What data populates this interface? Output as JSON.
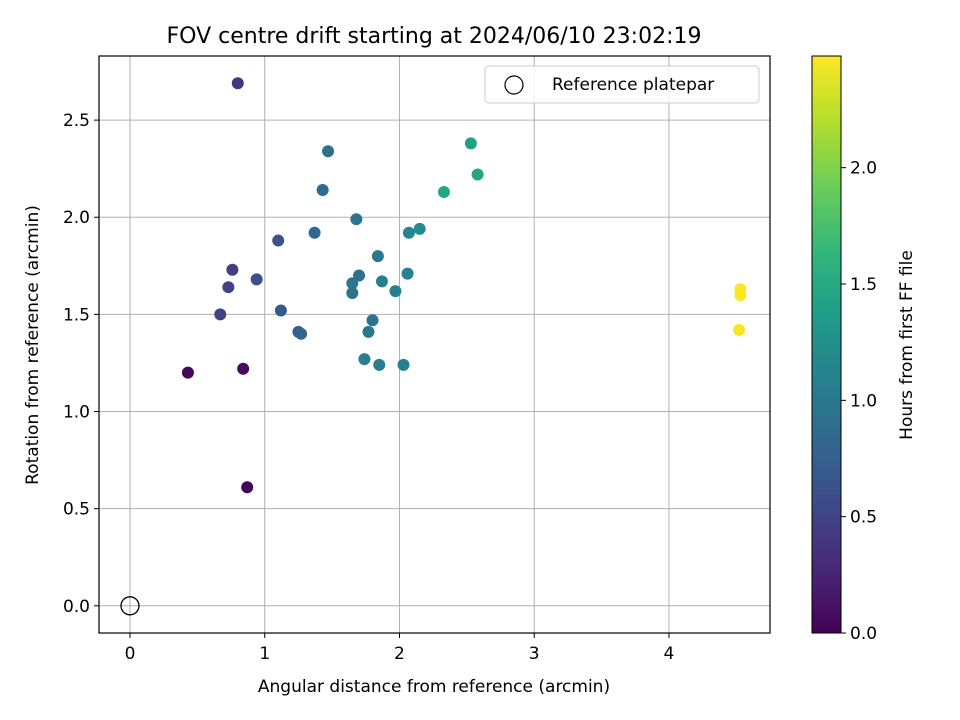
{
  "chart_data": {
    "type": "scatter",
    "title": "FOV centre drift starting at 2024/06/10 23:02:19",
    "xlabel": "Angular distance from reference (arcmin)",
    "ylabel": "Rotation from reference (arcmin)",
    "xlim": [
      -0.23,
      4.75
    ],
    "ylim": [
      -0.14,
      2.83
    ],
    "xticks": [
      "0",
      "1",
      "2",
      "3",
      "4"
    ],
    "xtick_values": [
      0,
      1,
      2,
      3,
      4
    ],
    "yticks": [
      "0.0",
      "0.5",
      "1.0",
      "1.5",
      "2.0",
      "2.5"
    ],
    "ytick_values": [
      0,
      0.5,
      1,
      1.5,
      2,
      2.5
    ],
    "grid": true,
    "legend": {
      "position": "top-right",
      "entries": [
        "Reference platepar"
      ]
    },
    "reference_point": {
      "x": 0,
      "y": 0,
      "name": "Reference platepar"
    },
    "colorbar": {
      "label": "Hours from first FF file",
      "colormap": "viridis",
      "range": [
        0,
        2.48
      ],
      "ticks": [
        "0.0",
        "0.5",
        "1.0",
        "1.5",
        "2.0"
      ],
      "tick_values": [
        0,
        0.5,
        1,
        1.5,
        2
      ],
      "colors": [
        "#440154",
        "#482878",
        "#3e4a89",
        "#31688e",
        "#26828e",
        "#1f9e89",
        "#35b779",
        "#6ece58",
        "#b5de2b",
        "#fde725"
      ]
    },
    "points": [
      {
        "x": 0.87,
        "y": 0.61,
        "c": 0.02
      },
      {
        "x": 0.43,
        "y": 1.2,
        "c": 0.05
      },
      {
        "x": 0.84,
        "y": 1.22,
        "c": 0.08
      },
      {
        "x": 0.8,
        "y": 2.69,
        "c": 0.4
      },
      {
        "x": 0.67,
        "y": 1.5,
        "c": 0.5
      },
      {
        "x": 0.73,
        "y": 1.64,
        "c": 0.5
      },
      {
        "x": 0.76,
        "y": 1.73,
        "c": 0.45
      },
      {
        "x": 0.94,
        "y": 1.68,
        "c": 0.6
      },
      {
        "x": 1.1,
        "y": 1.88,
        "c": 0.62
      },
      {
        "x": 1.12,
        "y": 1.52,
        "c": 0.7
      },
      {
        "x": 1.25,
        "y": 1.41,
        "c": 0.75
      },
      {
        "x": 1.27,
        "y": 1.4,
        "c": 0.8
      },
      {
        "x": 1.37,
        "y": 1.92,
        "c": 0.82
      },
      {
        "x": 1.43,
        "y": 2.14,
        "c": 0.85
      },
      {
        "x": 1.47,
        "y": 2.34,
        "c": 0.9
      },
      {
        "x": 1.68,
        "y": 1.99,
        "c": 0.95
      },
      {
        "x": 1.65,
        "y": 1.66,
        "c": 0.98
      },
      {
        "x": 1.65,
        "y": 1.61,
        "c": 0.95
      },
      {
        "x": 1.7,
        "y": 1.7,
        "c": 0.92
      },
      {
        "x": 1.8,
        "y": 1.47,
        "c": 0.95
      },
      {
        "x": 1.77,
        "y": 1.41,
        "c": 1.0
      },
      {
        "x": 1.74,
        "y": 1.27,
        "c": 1.05
      },
      {
        "x": 1.85,
        "y": 1.24,
        "c": 1.05
      },
      {
        "x": 1.84,
        "y": 1.8,
        "c": 1.0
      },
      {
        "x": 1.87,
        "y": 1.67,
        "c": 1.1
      },
      {
        "x": 1.97,
        "y": 1.62,
        "c": 1.1
      },
      {
        "x": 2.03,
        "y": 1.24,
        "c": 1.08
      },
      {
        "x": 2.06,
        "y": 1.71,
        "c": 1.1
      },
      {
        "x": 2.07,
        "y": 1.92,
        "c": 1.15
      },
      {
        "x": 2.15,
        "y": 1.94,
        "c": 1.2
      },
      {
        "x": 2.33,
        "y": 2.13,
        "c": 1.45
      },
      {
        "x": 2.53,
        "y": 2.38,
        "c": 1.4
      },
      {
        "x": 2.58,
        "y": 2.22,
        "c": 1.45
      },
      {
        "x": 4.53,
        "y": 1.63,
        "c": 2.48
      },
      {
        "x": 4.53,
        "y": 1.6,
        "c": 2.47
      },
      {
        "x": 4.52,
        "y": 1.42,
        "c": 2.46
      }
    ]
  }
}
